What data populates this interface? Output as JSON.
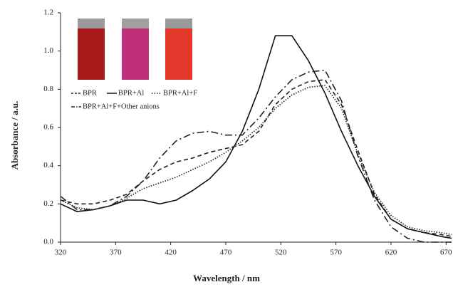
{
  "chart_data": {
    "type": "line",
    "xlabel": "Wavelength / nm",
    "ylabel": "Absorbance / a.u.",
    "x": [
      320,
      335,
      350,
      365,
      380,
      395,
      410,
      425,
      440,
      455,
      470,
      485,
      500,
      515,
      530,
      545,
      560,
      575,
      590,
      605,
      620,
      635,
      650,
      665,
      675
    ],
    "series": [
      {
        "name": "BPR",
        "color": "#222222",
        "dash": "6,4",
        "values": [
          0.22,
          0.2,
          0.2,
          0.22,
          0.25,
          0.32,
          0.38,
          0.42,
          0.44,
          0.47,
          0.49,
          0.51,
          0.58,
          0.72,
          0.8,
          0.84,
          0.85,
          0.72,
          0.48,
          0.25,
          0.12,
          0.07,
          0.05,
          0.04,
          0.03
        ]
      },
      {
        "name": "BPR+Al",
        "color": "#111111",
        "dash": "none",
        "values": [
          0.2,
          0.16,
          0.17,
          0.19,
          0.22,
          0.22,
          0.2,
          0.22,
          0.27,
          0.33,
          0.42,
          0.58,
          0.8,
          1.08,
          1.08,
          0.95,
          0.78,
          0.58,
          0.4,
          0.24,
          0.12,
          0.07,
          0.05,
          0.03,
          0.02
        ]
      },
      {
        "name": "BPR+Al+F",
        "color": "#222222",
        "dash": "1.5,2",
        "values": [
          0.22,
          0.18,
          0.17,
          0.19,
          0.23,
          0.28,
          0.31,
          0.34,
          0.38,
          0.42,
          0.47,
          0.53,
          0.6,
          0.7,
          0.77,
          0.81,
          0.82,
          0.7,
          0.46,
          0.26,
          0.14,
          0.08,
          0.06,
          0.05,
          0.04
        ]
      },
      {
        "name": "BPR+Al+F+Other anions",
        "color": "#222222",
        "dash": "10,4,2,4",
        "values": [
          0.24,
          0.17,
          0.17,
          0.19,
          0.24,
          0.32,
          0.44,
          0.53,
          0.57,
          0.58,
          0.56,
          0.56,
          0.65,
          0.76,
          0.85,
          0.89,
          0.9,
          0.74,
          0.45,
          0.22,
          0.08,
          0.02,
          0.0,
          0.0,
          0.0
        ]
      }
    ],
    "xlim": [
      320,
      675
    ],
    "xticks": [
      320,
      370,
      420,
      470,
      520,
      570,
      620,
      670
    ],
    "ylim": [
      0,
      1.2
    ],
    "yticks": [
      {
        "value": 0,
        "label": "0.0"
      },
      0.2,
      0.4,
      0.6,
      0.8,
      {
        "value": 1,
        "label": "1.0"
      },
      1.2
    ],
    "grid": false
  }
}
